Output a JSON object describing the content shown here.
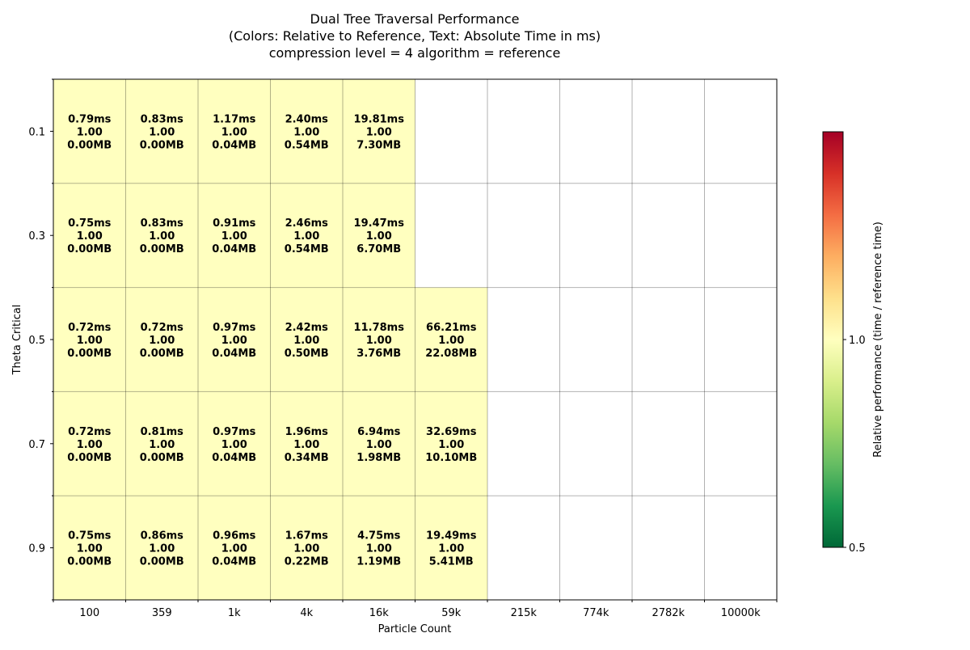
{
  "chart_data": {
    "type": "heatmap",
    "title_lines": [
      "Dual Tree Traversal Performance",
      "(Colors: Relative to Reference, Text: Absolute Time in ms)",
      "compression level = 4 algorithm = reference"
    ],
    "xlabel": "Particle Count",
    "ylabel": "Theta Critical",
    "x_categories": [
      "100",
      "359",
      "1k",
      "4k",
      "16k",
      "59k",
      "215k",
      "774k",
      "2782k",
      "10000k"
    ],
    "y_categories": [
      "0.1",
      "0.3",
      "0.5",
      "0.7",
      "0.9"
    ],
    "cells": [
      [
        {
          "time": "0.79ms",
          "rel": "1.00",
          "mem": "0.00MB"
        },
        {
          "time": "0.83ms",
          "rel": "1.00",
          "mem": "0.00MB"
        },
        {
          "time": "1.17ms",
          "rel": "1.00",
          "mem": "0.04MB"
        },
        {
          "time": "2.40ms",
          "rel": "1.00",
          "mem": "0.54MB"
        },
        {
          "time": "19.81ms",
          "rel": "1.00",
          "mem": "7.30MB"
        },
        null,
        null,
        null,
        null,
        null
      ],
      [
        {
          "time": "0.75ms",
          "rel": "1.00",
          "mem": "0.00MB"
        },
        {
          "time": "0.83ms",
          "rel": "1.00",
          "mem": "0.00MB"
        },
        {
          "time": "0.91ms",
          "rel": "1.00",
          "mem": "0.04MB"
        },
        {
          "time": "2.46ms",
          "rel": "1.00",
          "mem": "0.54MB"
        },
        {
          "time": "19.47ms",
          "rel": "1.00",
          "mem": "6.70MB"
        },
        null,
        null,
        null,
        null,
        null
      ],
      [
        {
          "time": "0.72ms",
          "rel": "1.00",
          "mem": "0.00MB"
        },
        {
          "time": "0.72ms",
          "rel": "1.00",
          "mem": "0.00MB"
        },
        {
          "time": "0.97ms",
          "rel": "1.00",
          "mem": "0.04MB"
        },
        {
          "time": "2.42ms",
          "rel": "1.00",
          "mem": "0.50MB"
        },
        {
          "time": "11.78ms",
          "rel": "1.00",
          "mem": "3.76MB"
        },
        {
          "time": "66.21ms",
          "rel": "1.00",
          "mem": "22.08MB"
        },
        null,
        null,
        null,
        null
      ],
      [
        {
          "time": "0.72ms",
          "rel": "1.00",
          "mem": "0.00MB"
        },
        {
          "time": "0.81ms",
          "rel": "1.00",
          "mem": "0.00MB"
        },
        {
          "time": "0.97ms",
          "rel": "1.00",
          "mem": "0.04MB"
        },
        {
          "time": "1.96ms",
          "rel": "1.00",
          "mem": "0.34MB"
        },
        {
          "time": "6.94ms",
          "rel": "1.00",
          "mem": "1.98MB"
        },
        {
          "time": "32.69ms",
          "rel": "1.00",
          "mem": "10.10MB"
        },
        null,
        null,
        null,
        null
      ],
      [
        {
          "time": "0.75ms",
          "rel": "1.00",
          "mem": "0.00MB"
        },
        {
          "time": "0.86ms",
          "rel": "1.00",
          "mem": "0.00MB"
        },
        {
          "time": "0.96ms",
          "rel": "1.00",
          "mem": "0.04MB"
        },
        {
          "time": "1.67ms",
          "rel": "1.00",
          "mem": "0.22MB"
        },
        {
          "time": "4.75ms",
          "rel": "1.00",
          "mem": "1.19MB"
        },
        {
          "time": "19.49ms",
          "rel": "1.00",
          "mem": "5.41MB"
        },
        null,
        null,
        null,
        null
      ]
    ],
    "cell_color": "#ffffbf",
    "grid": true,
    "colorbar": {
      "label": "Relative performance (time / reference time)",
      "min": 0.5,
      "max": 1.5,
      "ticks": [
        "0.5",
        "1.0"
      ],
      "colormap": "RdYlGn_r",
      "colors": [
        "#006837",
        "#1a9850",
        "#66bd63",
        "#a6d96a",
        "#d9ef8b",
        "#ffffbf",
        "#fee08b",
        "#fdae61",
        "#f46d43",
        "#d73027",
        "#a50026"
      ]
    }
  }
}
